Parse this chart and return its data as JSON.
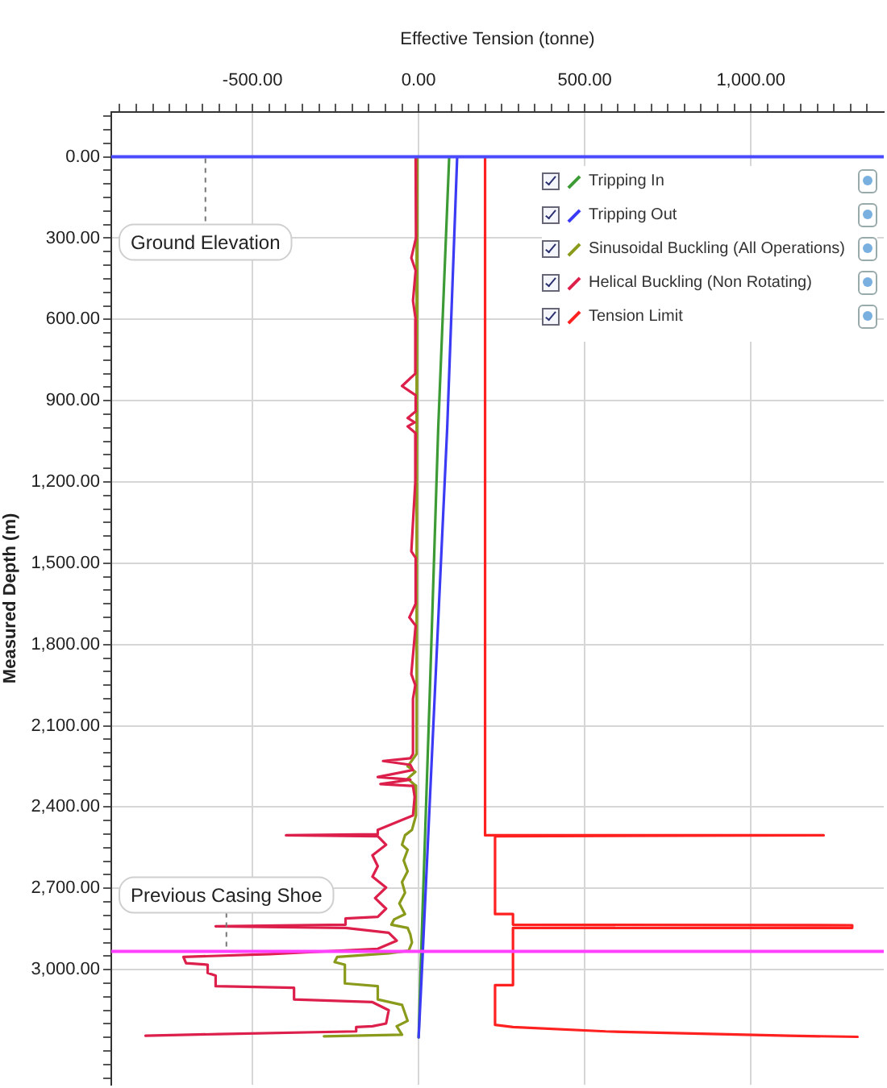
{
  "chart_data": {
    "type": "line",
    "xlabel": "Effective Tension (tonne)",
    "ylabel": "Measured Depth (m)",
    "legend": "top right",
    "grid": true,
    "marker": "none",
    "xlim": [
      -925,
      1400
    ],
    "xticks": [
      {
        "value": -900,
        "label": null
      },
      {
        "value": -850,
        "label": null
      },
      {
        "value": -800,
        "label": null
      },
      {
        "value": -750,
        "label": null
      },
      {
        "value": -700,
        "label": null
      },
      {
        "value": -650,
        "label": null
      },
      {
        "value": -600,
        "label": null
      },
      {
        "value": -550,
        "label": null
      },
      {
        "value": -500,
        "label": "-500.00"
      },
      {
        "value": -450,
        "label": null
      },
      {
        "value": -400,
        "label": null
      },
      {
        "value": -350,
        "label": null
      },
      {
        "value": -300,
        "label": null
      },
      {
        "value": -250,
        "label": null
      },
      {
        "value": -200,
        "label": null
      },
      {
        "value": -150,
        "label": null
      },
      {
        "value": -100,
        "label": null
      },
      {
        "value": -50,
        "label": null
      },
      {
        "value": 0,
        "label": "0.00"
      },
      {
        "value": 50,
        "label": null
      },
      {
        "value": 100,
        "label": null
      },
      {
        "value": 150,
        "label": null
      },
      {
        "value": 200,
        "label": null
      },
      {
        "value": 250,
        "label": null
      },
      {
        "value": 300,
        "label": null
      },
      {
        "value": 350,
        "label": null
      },
      {
        "value": 400,
        "label": null
      },
      {
        "value": 450,
        "label": null
      },
      {
        "value": 500,
        "label": "500.00"
      },
      {
        "value": 550,
        "label": null
      },
      {
        "value": 600,
        "label": null
      },
      {
        "value": 650,
        "label": null
      },
      {
        "value": 700,
        "label": null
      },
      {
        "value": 750,
        "label": null
      },
      {
        "value": 800,
        "label": null
      },
      {
        "value": 850,
        "label": null
      },
      {
        "value": 900,
        "label": null
      },
      {
        "value": 950,
        "label": null
      },
      {
        "value": 1000,
        "label": "1,000.00"
      },
      {
        "value": 1050,
        "label": null
      },
      {
        "value": 1100,
        "label": null
      },
      {
        "value": 1150,
        "label": null
      },
      {
        "value": 1200,
        "label": null
      },
      {
        "value": 1250,
        "label": null
      },
      {
        "value": 1300,
        "label": null
      },
      {
        "value": 1350,
        "label": null
      }
    ],
    "ylim": [
      3425,
      -166
    ],
    "yticks": [
      {
        "value": -150,
        "label": null
      },
      {
        "value": -100,
        "label": null
      },
      {
        "value": -50,
        "label": null
      },
      {
        "value": 0,
        "label": "0.00"
      },
      {
        "value": 50,
        "label": null
      },
      {
        "value": 100,
        "label": null
      },
      {
        "value": 150,
        "label": null
      },
      {
        "value": 200,
        "label": null
      },
      {
        "value": 250,
        "label": null
      },
      {
        "value": 300,
        "label": "300.00"
      },
      {
        "value": 350,
        "label": null
      },
      {
        "value": 400,
        "label": null
      },
      {
        "value": 450,
        "label": null
      },
      {
        "value": 500,
        "label": null
      },
      {
        "value": 550,
        "label": null
      },
      {
        "value": 600,
        "label": "600.00"
      },
      {
        "value": 650,
        "label": null
      },
      {
        "value": 700,
        "label": null
      },
      {
        "value": 750,
        "label": null
      },
      {
        "value": 800,
        "label": null
      },
      {
        "value": 850,
        "label": null
      },
      {
        "value": 900,
        "label": "900.00"
      },
      {
        "value": 950,
        "label": null
      },
      {
        "value": 1000,
        "label": null
      },
      {
        "value": 1050,
        "label": null
      },
      {
        "value": 1100,
        "label": null
      },
      {
        "value": 1150,
        "label": null
      },
      {
        "value": 1200,
        "label": "1,200.00"
      },
      {
        "value": 1250,
        "label": null
      },
      {
        "value": 1300,
        "label": null
      },
      {
        "value": 1350,
        "label": null
      },
      {
        "value": 1400,
        "label": null
      },
      {
        "value": 1450,
        "label": null
      },
      {
        "value": 1500,
        "label": "1,500.00"
      },
      {
        "value": 1550,
        "label": null
      },
      {
        "value": 1600,
        "label": null
      },
      {
        "value": 1650,
        "label": null
      },
      {
        "value": 1700,
        "label": null
      },
      {
        "value": 1750,
        "label": null
      },
      {
        "value": 1800,
        "label": "1,800.00"
      },
      {
        "value": 1850,
        "label": null
      },
      {
        "value": 1900,
        "label": null
      },
      {
        "value": 1950,
        "label": null
      },
      {
        "value": 2000,
        "label": null
      },
      {
        "value": 2050,
        "label": null
      },
      {
        "value": 2100,
        "label": "2,100.00"
      },
      {
        "value": 2150,
        "label": null
      },
      {
        "value": 2200,
        "label": null
      },
      {
        "value": 2250,
        "label": null
      },
      {
        "value": 2300,
        "label": null
      },
      {
        "value": 2350,
        "label": null
      },
      {
        "value": 2400,
        "label": "2,400.00"
      },
      {
        "value": 2450,
        "label": null
      },
      {
        "value": 2500,
        "label": null
      },
      {
        "value": 2550,
        "label": null
      },
      {
        "value": 2600,
        "label": null
      },
      {
        "value": 2650,
        "label": null
      },
      {
        "value": 2700,
        "label": "2,700.00"
      },
      {
        "value": 2750,
        "label": null
      },
      {
        "value": 2800,
        "label": null
      },
      {
        "value": 2850,
        "label": null
      },
      {
        "value": 2900,
        "label": null
      },
      {
        "value": 2950,
        "label": null
      },
      {
        "value": 3000,
        "label": "3,000.00"
      },
      {
        "value": 3050,
        "label": null
      },
      {
        "value": 3100,
        "label": null
      },
      {
        "value": 3150,
        "label": null
      },
      {
        "value": 3200,
        "label": null
      },
      {
        "value": 3250,
        "label": null
      },
      {
        "value": 3300,
        "label": null
      },
      {
        "value": 3350,
        "label": null
      },
      {
        "value": 3400,
        "label": null
      }
    ],
    "series": [
      {
        "name": "Tripping In",
        "color": "#3d9b35",
        "x": [
          92,
          59,
          33,
          6,
          0
        ],
        "values": [
          0,
          1000,
          2000,
          3000,
          3250
        ]
      },
      {
        "name": "Tripping Out",
        "color": "#3b3bf5",
        "x": [
          116,
          86,
          48,
          10,
          0
        ],
        "values": [
          0,
          1000,
          2000,
          3000,
          3250
        ]
      },
      {
        "name": "Sinusoidal Buckling (All Operations)",
        "color": "#8a9a1b",
        "x": [
          -4,
          -6,
          -33,
          -10,
          -33,
          -10,
          -8,
          -20,
          -41,
          -50,
          -33,
          -45,
          -33,
          -50,
          -41,
          -58,
          -41,
          -74,
          -82,
          -33,
          -25,
          -20,
          -30,
          -90,
          -245,
          -253,
          -222,
          -222,
          -123,
          -123,
          -50,
          -33,
          -66,
          -50,
          -285
        ],
        "values": [
          0,
          2204,
          2250,
          2270,
          2295,
          2320,
          2431,
          2484,
          2504,
          2539,
          2558,
          2597,
          2637,
          2677,
          2716,
          2756,
          2795,
          2815,
          2834,
          2846,
          2870,
          2900,
          2930,
          2940,
          2953,
          2972,
          2982,
          3051,
          3061,
          3110,
          3130,
          3189,
          3209,
          3240,
          3246
        ]
      },
      {
        "name": "Helical Buckling (Non Rotating)",
        "color": "#dc1f4b",
        "x": [
          -9,
          -8,
          -22,
          -9,
          -17,
          -9,
          -10,
          -50,
          -9,
          -9,
          -33,
          -12,
          -33,
          -9,
          -10,
          -22,
          -9,
          -9,
          -28,
          -9,
          -22,
          -10,
          -17,
          -17,
          -25,
          -107,
          -25,
          -17,
          -123,
          -25,
          -115,
          -17,
          -12,
          -17,
          -123,
          -123,
          -399,
          -123,
          -98,
          -139,
          -123,
          -139,
          -98,
          -131,
          -98,
          -123,
          -220,
          -220,
          -611,
          -220,
          -90,
          -66,
          -123,
          -448,
          -708,
          -700,
          -635,
          -635,
          -611,
          -611,
          -375,
          -375,
          -139,
          -90,
          -98,
          -139,
          -188,
          -188,
          -603,
          -822
        ],
        "values": [
          0,
          300,
          373,
          420,
          531,
          600,
          800,
          846,
          880,
          940,
          964,
          980,
          995,
          1020,
          1200,
          1456,
          1480,
          1650,
          1700,
          1730,
          1909,
          1950,
          2000,
          2204,
          2220,
          2230,
          2244,
          2263,
          2289,
          2299,
          2315,
          2322,
          2362,
          2431,
          2484,
          2500,
          2504,
          2508,
          2539,
          2578,
          2618,
          2657,
          2697,
          2736,
          2775,
          2805,
          2811,
          2834,
          2840,
          2846,
          2864,
          2893,
          2923,
          2943,
          2953,
          2976,
          2982,
          3012,
          3022,
          3061,
          3067,
          3110,
          3120,
          3150,
          3199,
          3209,
          3212,
          3228,
          3238,
          3244
        ]
      },
      {
        "name": "Tension Limit",
        "color": "#ff2020",
        "x": [
          200,
          200,
          1219,
          230,
          230,
          284,
          284,
          1305,
          1305,
          284,
          284,
          230,
          230,
          284,
          563,
          1113,
          1321
        ],
        "values": [
          0,
          2504,
          2504,
          2508,
          2795,
          2795,
          2834,
          2836,
          2846,
          2846,
          3057,
          3057,
          3204,
          3212,
          3228,
          3244,
          3248
        ]
      }
    ],
    "ref_lines": [
      {
        "axis": "y",
        "value": 0,
        "label": "Ground Elevation",
        "color": "#4a4aff"
      },
      {
        "axis": "y",
        "value": 2933,
        "label": "Previous Casing Shoe",
        "color": "#ff40ff"
      }
    ]
  }
}
